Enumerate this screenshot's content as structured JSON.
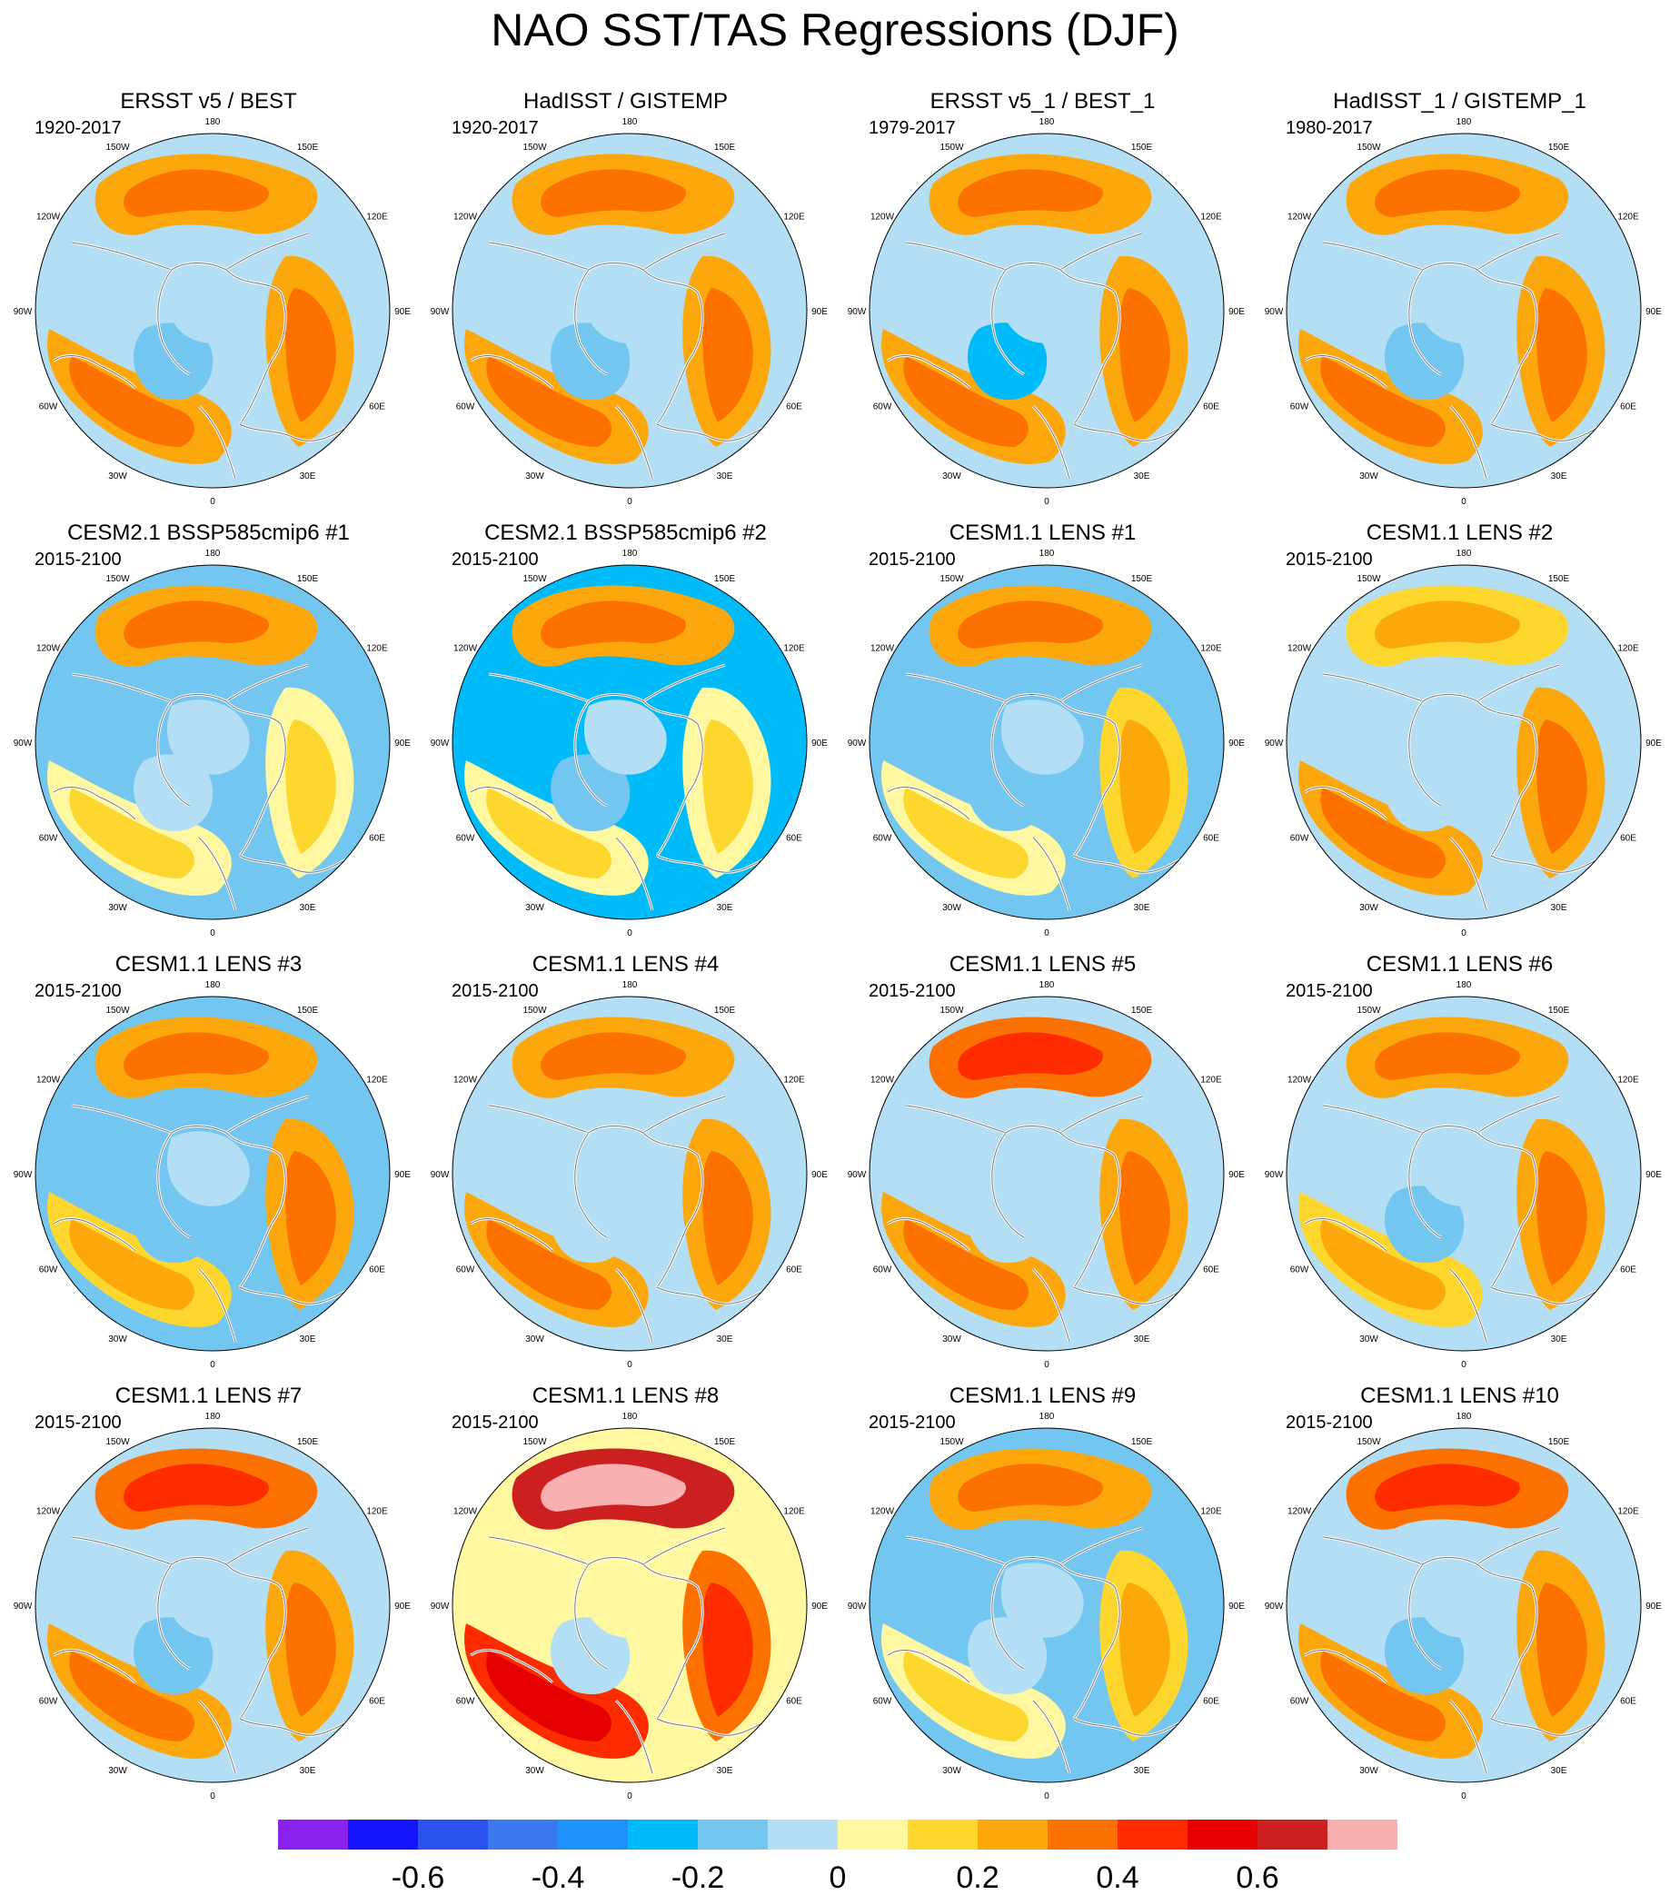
{
  "chart_data": {
    "type": "heatmap",
    "projection": "north-polar-stereographic",
    "title": "NAO SST/TAS Regressions (DJF)",
    "longitude_labels": [
      "180",
      "150E",
      "120E",
      "90E",
      "60E",
      "30E",
      "0",
      "30W",
      "60W",
      "90W",
      "120W",
      "150W"
    ],
    "colorbar": {
      "colors": [
        "#8a22ee",
        "#1414ff",
        "#2c52ee",
        "#3a78ee",
        "#1e92fb",
        "#00bbfa",
        "#72c6f0",
        "#b3def4",
        "#fff8a0",
        "#fdd62e",
        "#fca80c",
        "#fc7100",
        "#ff2c00",
        "#e60000",
        "#cc1f20",
        "#f9b0b0"
      ],
      "tick_labels": [
        "-0.6",
        "-0.4",
        "-0.2",
        "0",
        "0.2",
        "0.4",
        "0.6"
      ],
      "levels": [
        -0.7,
        -0.6,
        -0.5,
        -0.4,
        -0.3,
        -0.2,
        -0.1,
        0,
        0.1,
        0.2,
        0.3,
        0.4,
        0.5,
        0.6,
        0.7
      ]
    },
    "panels": [
      {
        "title": "ERSST v5 / BEST",
        "period": "1920-2017",
        "regression": {
          "north_pacific": 0.25,
          "eurasia": 0.25,
          "north_atlantic": 0.25,
          "labrador_sea": -0.2,
          "arctic": -0.05,
          "ocean_background": -0.05
        }
      },
      {
        "title": "HadISST / GISTEMP",
        "period": "1920-2017",
        "regression": {
          "north_pacific": 0.22,
          "eurasia": 0.22,
          "north_atlantic": 0.25,
          "labrador_sea": -0.15,
          "arctic": -0.05,
          "ocean_background": -0.05
        }
      },
      {
        "title": "ERSST v5_1 / BEST_1",
        "period": "1979-2017",
        "regression": {
          "north_pacific": 0.22,
          "eurasia": 0.25,
          "north_atlantic": 0.28,
          "labrador_sea": -0.25,
          "arctic": -0.05,
          "ocean_background": -0.05
        }
      },
      {
        "title": "HadISST_1 / GISTEMP_1",
        "period": "1980-2017",
        "regression": {
          "north_pacific": 0.2,
          "eurasia": 0.25,
          "north_atlantic": 0.25,
          "labrador_sea": -0.15,
          "arctic": -0.05,
          "ocean_background": -0.05
        }
      },
      {
        "title": "CESM2.1 BSSP585cmip6 #1",
        "period": "2015-2100",
        "regression": {
          "north_pacific": 0.22,
          "eurasia": 0.05,
          "north_atlantic": 0.08,
          "labrador_sea": -0.1,
          "arctic": -0.1,
          "ocean_background": -0.15
        }
      },
      {
        "title": "CESM2.1 BSSP585cmip6 #2",
        "period": "2015-2100",
        "regression": {
          "north_pacific": 0.25,
          "eurasia": 0.05,
          "north_atlantic": 0.08,
          "labrador_sea": -0.15,
          "arctic": -0.1,
          "ocean_background": -0.25
        }
      },
      {
        "title": "CESM1.1 LENS #1",
        "period": "2015-2100",
        "regression": {
          "north_pacific": 0.2,
          "eurasia": 0.15,
          "north_atlantic": 0.05,
          "labrador_sea": -0.15,
          "arctic": -0.1,
          "ocean_background": -0.12
        }
      },
      {
        "title": "CESM1.1 LENS #2",
        "period": "2015-2100",
        "regression": {
          "north_pacific": 0.15,
          "eurasia": 0.2,
          "north_atlantic": 0.2,
          "labrador_sea": -0.1,
          "arctic": -0.05,
          "ocean_background": -0.05
        }
      },
      {
        "title": "CESM1.1 LENS #3",
        "period": "2015-2100",
        "regression": {
          "north_pacific": 0.25,
          "eurasia": 0.2,
          "north_atlantic": 0.12,
          "labrador_sea": -0.15,
          "arctic": -0.1,
          "ocean_background": -0.2
        }
      },
      {
        "title": "CESM1.1 LENS #4",
        "period": "2015-2100",
        "regression": {
          "north_pacific": 0.22,
          "eurasia": 0.2,
          "north_atlantic": 0.2,
          "labrador_sea": -0.1,
          "arctic": -0.05,
          "ocean_background": -0.05
        }
      },
      {
        "title": "CESM1.1 LENS #5",
        "period": "2015-2100",
        "regression": {
          "north_pacific": 0.35,
          "eurasia": 0.2,
          "north_atlantic": 0.25,
          "labrador_sea": -0.1,
          "arctic": -0.05,
          "ocean_background": -0.05
        }
      },
      {
        "title": "CESM1.1 LENS #6",
        "period": "2015-2100",
        "regression": {
          "north_pacific": 0.25,
          "eurasia": 0.2,
          "north_atlantic": 0.15,
          "labrador_sea": -0.15,
          "arctic": -0.05,
          "ocean_background": -0.1
        }
      },
      {
        "title": "CESM1.1 LENS #7",
        "period": "2015-2100",
        "regression": {
          "north_pacific": 0.3,
          "eurasia": 0.25,
          "north_atlantic": 0.25,
          "labrador_sea": -0.15,
          "arctic": -0.05,
          "ocean_background": -0.05
        }
      },
      {
        "title": "CESM1.1 LENS #8",
        "period": "2015-2100",
        "regression": {
          "north_pacific": 0.6,
          "eurasia": 0.35,
          "north_atlantic": 0.4,
          "labrador_sea": -0.05,
          "arctic": 0.05,
          "ocean_background": 0.05
        }
      },
      {
        "title": "CESM1.1 LENS #9",
        "period": "2015-2100",
        "regression": {
          "north_pacific": 0.2,
          "eurasia": 0.15,
          "north_atlantic": 0.05,
          "labrador_sea": -0.1,
          "arctic": -0.1,
          "ocean_background": -0.15
        }
      },
      {
        "title": "CESM1.1 LENS #10",
        "period": "2015-2100",
        "regression": {
          "north_pacific": 0.35,
          "eurasia": 0.25,
          "north_atlantic": 0.25,
          "labrador_sea": -0.15,
          "arctic": -0.05,
          "ocean_background": -0.05
        }
      }
    ]
  }
}
